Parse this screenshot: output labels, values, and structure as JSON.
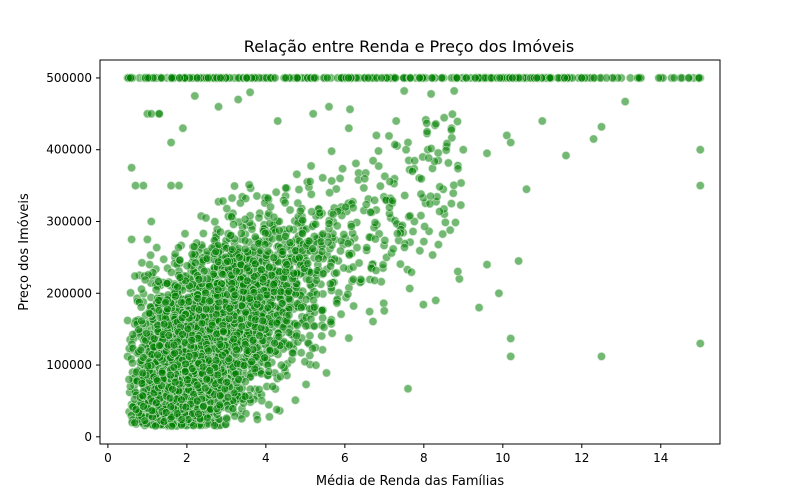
{
  "chart_data": {
    "type": "scatter",
    "title": "Relação entre Renda e Preço dos Imóveis",
    "xlabel": "Média de Renda das Famílias",
    "ylabel": "Preço dos Imóveis",
    "xlim": [
      -0.2,
      15.5
    ],
    "ylim": [
      -10000,
      525000
    ],
    "xticks": [
      0,
      2,
      4,
      6,
      8,
      10,
      12,
      14
    ],
    "yticks": [
      0,
      100000,
      200000,
      300000,
      400000,
      500000
    ],
    "grid": false,
    "legend": "none",
    "point_color": "#008000",
    "point_opacity": 0.55,
    "series": [
      {
        "x": [
          0.5,
          0.6,
          0.8,
          0.9,
          1.0,
          1.2,
          1.5,
          1.6,
          1.9,
          2.1,
          2.3,
          2.4,
          2.5,
          2.6,
          2.8,
          3.0,
          3.2,
          3.5,
          3.8,
          4.0,
          4.5,
          5.0,
          5.5,
          6.0,
          6.5,
          7.0,
          7.5,
          8.0,
          8.5,
          9.0,
          9.5,
          10.0,
          10.3,
          10.6,
          11.0,
          11.5,
          12.0,
          12.5,
          13.0,
          13.5,
          14.0,
          14.5,
          15.0,
          0.5,
          0.5,
          0.6,
          0.7,
          0.9,
          1.0,
          1.1,
          0.6,
          1.0,
          1.6,
          1.8,
          0.9,
          1.3,
          0.8,
          1.7,
          0.6,
          0.7,
          1.9,
          1.1,
          1.3,
          1.6,
          1.9,
          2.2,
          2.8,
          3.3,
          3.6,
          4.3,
          5.2,
          5.6,
          6.1,
          6.8,
          7.3,
          7.6,
          8.1,
          8.7,
          9.0,
          9.6,
          10.1,
          10.2,
          10.6,
          11.0,
          11.6,
          12.3,
          12.5,
          13.1,
          15.0,
          15.0,
          15.0,
          10.2,
          10.2,
          12.5,
          9.4,
          8.3,
          7.6,
          10.4,
          9.6,
          9.9,
          8.9
        ],
        "y": [
          500000,
          500000,
          500000,
          500000,
          500000,
          500000,
          500000,
          500000,
          500000,
          500000,
          500000,
          500000,
          500000,
          500000,
          500000,
          500000,
          500000,
          500000,
          500000,
          500000,
          500000,
          500000,
          500000,
          500000,
          500000,
          500000,
          500000,
          500000,
          500000,
          500000,
          500000,
          500000,
          500000,
          500000,
          500000,
          500000,
          500000,
          500000,
          500000,
          500000,
          500000,
          500000,
          500000,
          162000,
          112000,
          375000,
          350000,
          350000,
          450000,
          300000,
          275000,
          275000,
          350000,
          350000,
          188000,
          450000,
          225000,
          250000,
          45000,
          42000,
          100000,
          450000,
          450000,
          410000,
          430000,
          475000,
          460000,
          470000,
          480000,
          440000,
          450000,
          460000,
          430000,
          420000,
          440000,
          410000,
          400000,
          430000,
          400000,
          395000,
          420000,
          410000,
          345000,
          440000,
          392000,
          415000,
          432000,
          467000,
          400000,
          350000,
          130000,
          137000,
          112000,
          112000,
          180000,
          190000,
          67000,
          245000,
          240000,
          200000,
          220000
        ]
      }
    ]
  }
}
